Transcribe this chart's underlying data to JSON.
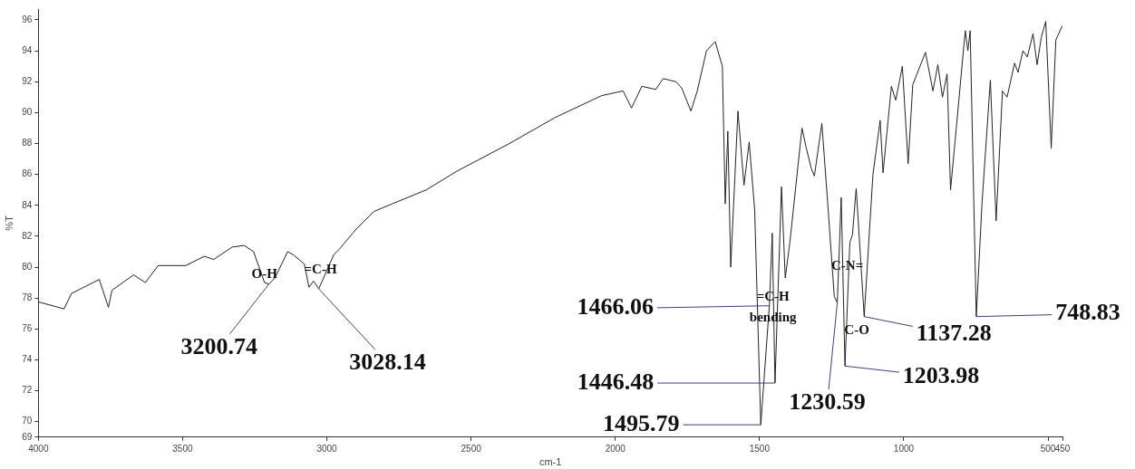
{
  "chart_data": {
    "type": "line",
    "xlabel": "cm-1",
    "ylabel": "%T",
    "color": "#222222",
    "x": [
      4000,
      3911,
      3885,
      3789,
      3757,
      3745,
      3670,
      3629,
      3585,
      3489,
      3425,
      3392,
      3328,
      3286,
      3254,
      3216,
      3200.74,
      3180,
      3136,
      3116,
      3078,
      3062,
      3046,
      3028.14,
      2976,
      2955,
      2901,
      2837,
      2773,
      2655,
      2550,
      2367,
      2207,
      2047,
      1973,
      1944,
      1908,
      1860,
      1834,
      1790,
      1770,
      1738,
      1716,
      1684,
      1654,
      1629,
      1619,
      1610,
      1600,
      1575,
      1554,
      1536,
      1517,
      1495.79,
      1466.06,
      1456,
      1446.48,
      1424,
      1411,
      1395,
      1353,
      1338,
      1321,
      1310,
      1284,
      1261,
      1241,
      1230.59,
      1217,
      1203.98,
      1187,
      1178,
      1165,
      1137.28,
      1107,
      1082,
      1072,
      1043,
      1028,
      1005,
      985,
      969,
      925,
      899,
      882,
      866,
      850,
      838,
      825,
      787,
      778,
      770,
      748.83,
      729,
      700,
      680,
      658,
      642,
      616,
      604,
      587,
      572,
      552,
      538,
      523,
      508,
      489,
      473,
      451
    ],
    "values": [
      77.75,
      77.3,
      78.3,
      79.2,
      77.4,
      78.5,
      79.5,
      79.0,
      80.1,
      80.1,
      80.7,
      80.5,
      81.3,
      81.4,
      81.0,
      79.0,
      78.9,
      79.3,
      81.0,
      80.8,
      80.2,
      78.7,
      79.1,
      78.6,
      80.8,
      81.2,
      82.4,
      83.6,
      84.1,
      85.0,
      86.2,
      88.0,
      89.7,
      91.1,
      91.4,
      90.3,
      91.7,
      91.5,
      92.2,
      92.0,
      91.6,
      90.1,
      91.4,
      94.0,
      94.6,
      93.0,
      84.1,
      88.8,
      80.0,
      90.1,
      85.3,
      88.1,
      83.7,
      69.8,
      77.5,
      82.2,
      72.5,
      85.2,
      79.3,
      81.6,
      89.0,
      87.7,
      86.4,
      85.9,
      89.3,
      83.4,
      78.1,
      77.7,
      84.5,
      73.6,
      81.6,
      82.1,
      85.1,
      76.8,
      86.0,
      89.5,
      86.1,
      91.7,
      90.8,
      93.0,
      86.7,
      91.8,
      93.9,
      91.4,
      93.1,
      91.0,
      92.5,
      85.0,
      87.6,
      95.3,
      94.0,
      95.3,
      76.8,
      84.1,
      92.1,
      83.0,
      91.4,
      91.0,
      93.2,
      92.6,
      94.0,
      93.6,
      95.1,
      93.1,
      94.9,
      95.9,
      87.7,
      94.7,
      95.6
    ],
    "xlim": [
      4000,
      450
    ],
    "xticks": [
      4000,
      3500,
      3000,
      2500,
      2000,
      1500,
      1000,
      500,
      450
    ],
    "ylim": [
      69,
      96.7
    ],
    "yticks": [
      69,
      70,
      72,
      74,
      76,
      78,
      80,
      82,
      84,
      86,
      88,
      90,
      92,
      94,
      96
    ],
    "grid": false,
    "legend": false,
    "marker": "none",
    "line_style": "solid",
    "annotations": [
      {
        "text": "3200.74",
        "x": 3200.74,
        "y": 78.9
      },
      {
        "text": "3028.14",
        "x": 3028.14,
        "y": 78.6
      },
      {
        "text": "O-H",
        "x": 3200.74,
        "y": 78.9
      },
      {
        "text": "=C-H",
        "x": 3028.14,
        "y": 78.6
      },
      {
        "text": "1466.06",
        "x": 1466.06,
        "y": 77.5
      },
      {
        "text": "=C-H\nbending",
        "x": 1466.06,
        "y": 77.5
      },
      {
        "text": "1446.48",
        "x": 1446.48,
        "y": 72.5
      },
      {
        "text": "1495.79",
        "x": 1495.79,
        "y": 69.8
      },
      {
        "text": "1230.59",
        "x": 1230.59,
        "y": 77.7
      },
      {
        "text": "C-N=",
        "x": 1230.59,
        "y": 77.7
      },
      {
        "text": "1203.98",
        "x": 1203.98,
        "y": 73.6
      },
      {
        "text": "C-O",
        "x": 1203.98,
        "y": 73.6
      },
      {
        "text": "1137.28",
        "x": 1137.28,
        "y": 76.8
      },
      {
        "text": "748.83",
        "x": 748.83,
        "y": 76.8
      }
    ]
  }
}
